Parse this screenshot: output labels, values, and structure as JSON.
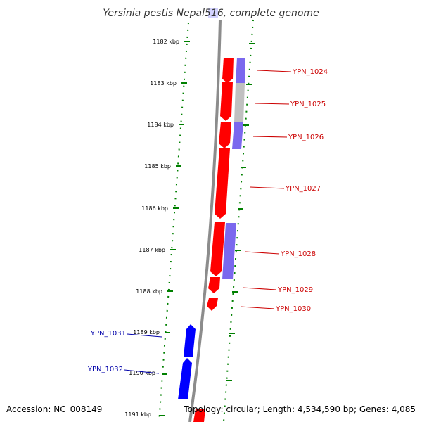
{
  "title": "Yersinia pestis Nepal516, complete genome",
  "accession": "Accession: NC_008149",
  "summary": "Topology: circular; Length: 4,534,590 bp; Genes: 4,085",
  "colors": {
    "backbone": "#8c8c8c",
    "ticks": "#008000",
    "forward_gene": "#ff0000",
    "reverse_gene": "#0000ff",
    "forward_label": "#cc0000",
    "reverse_label": "#0000aa",
    "blast_hit": "#7b68ee",
    "gray_hit": "#c0c0c0"
  },
  "tick_labels": [
    "1182 kbp",
    "1183 kbp",
    "1184 kbp",
    "1185 kbp",
    "1186 kbp",
    "1187 kbp",
    "1188 kbp",
    "1189 kbp",
    "1190 kbp",
    "1191 kbp"
  ],
  "genes": [
    {
      "name": "YPN_1024",
      "strand": "+"
    },
    {
      "name": "YPN_1025",
      "strand": "+"
    },
    {
      "name": "YPN_1026",
      "strand": "+"
    },
    {
      "name": "YPN_1027",
      "strand": "+"
    },
    {
      "name": "YPN_1028",
      "strand": "+"
    },
    {
      "name": "YPN_1029",
      "strand": "+"
    },
    {
      "name": "YPN_1030",
      "strand": "+"
    },
    {
      "name": "YPN_1031",
      "strand": "-"
    },
    {
      "name": "YPN_1032",
      "strand": "-"
    }
  ]
}
